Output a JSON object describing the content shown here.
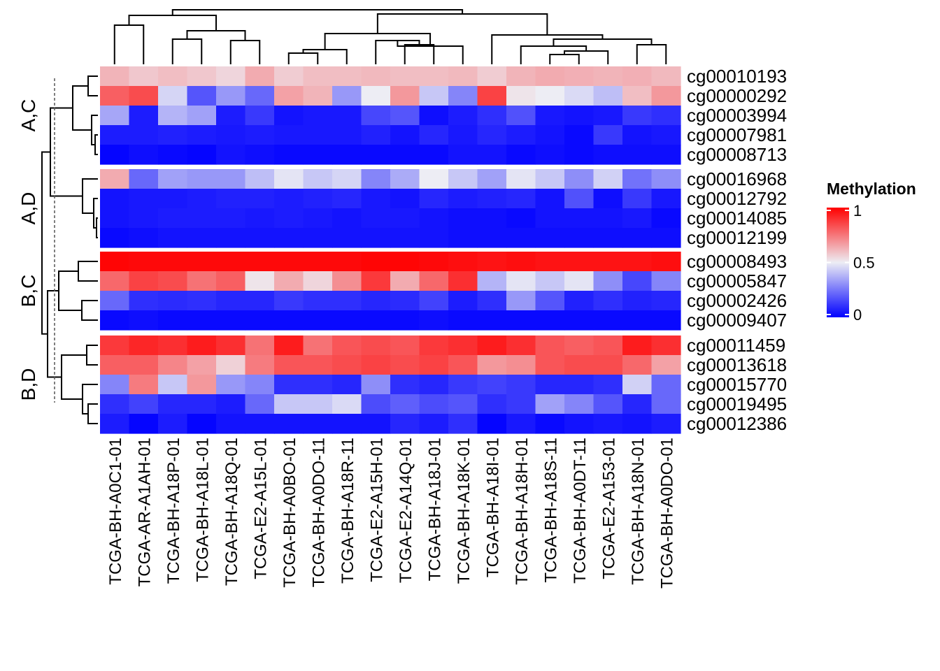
{
  "chart_data": {
    "type": "heatmap",
    "columns": [
      "TCGA-BH-A0C1-01",
      "TCGA-AR-A1AH-01",
      "TCGA-BH-A18P-01",
      "TCGA-BH-A18L-01",
      "TCGA-BH-A18Q-01",
      "TCGA-E2-A15L-01",
      "TCGA-BH-A0BO-01",
      "TCGA-BH-A0DO-11",
      "TCGA-BH-A18R-11",
      "TCGA-E2-A15H-01",
      "TCGA-E2-A14Q-01",
      "TCGA-BH-A18J-01",
      "TCGA-BH-A18K-01",
      "TCGA-BH-A18I-01",
      "TCGA-BH-A18H-01",
      "TCGA-BH-A18S-11",
      "TCGA-BH-A0DT-11",
      "TCGA-E2-A153-01",
      "TCGA-BH-A18N-01",
      "TCGA-BH-A0DO-01"
    ],
    "row_groups": [
      {
        "label": "A,C",
        "rows": [
          {
            "name": "cg00010193",
            "values": [
              0.62,
              0.58,
              0.6,
              0.58,
              0.55,
              0.64,
              0.57,
              0.6,
              0.6,
              0.61,
              0.6,
              0.6,
              0.61,
              0.57,
              0.62,
              0.64,
              0.63,
              0.62,
              0.63,
              0.61
            ]
          },
          {
            "name": "cg00000292",
            "values": [
              0.8,
              0.84,
              0.45,
              0.18,
              0.32,
              0.22,
              0.66,
              0.62,
              0.32,
              0.5,
              0.68,
              0.42,
              0.28,
              0.86,
              0.52,
              0.5,
              0.46,
              0.4,
              0.6,
              0.68
            ]
          },
          {
            "name": "cg00003994",
            "values": [
              0.35,
              0.06,
              0.38,
              0.34,
              0.06,
              0.12,
              0.04,
              0.05,
              0.05,
              0.15,
              0.18,
              0.03,
              0.06,
              0.1,
              0.17,
              0.05,
              0.04,
              0.05,
              0.12,
              0.1
            ]
          },
          {
            "name": "cg00007981",
            "values": [
              0.06,
              0.06,
              0.07,
              0.06,
              0.05,
              0.06,
              0.05,
              0.05,
              0.05,
              0.07,
              0.04,
              0.08,
              0.05,
              0.08,
              0.06,
              0.04,
              0.02,
              0.12,
              0.04,
              0.05
            ]
          },
          {
            "name": "cg00008713",
            "values": [
              0.01,
              0.03,
              0.02,
              0.01,
              0.04,
              0.03,
              0.02,
              0.02,
              0.02,
              0.02,
              0.02,
              0.02,
              0.04,
              0.04,
              0.02,
              0.03,
              0.02,
              0.03,
              0.03,
              0.03
            ]
          }
        ]
      },
      {
        "label": "A,D",
        "rows": [
          {
            "name": "cg00016968",
            "values": [
              0.64,
              0.22,
              0.34,
              0.32,
              0.32,
              0.4,
              0.48,
              0.42,
              0.45,
              0.28,
              0.36,
              0.5,
              0.42,
              0.34,
              0.48,
              0.42,
              0.3,
              0.44,
              0.24,
              0.3
            ]
          },
          {
            "name": "cg00012792",
            "values": [
              0.04,
              0.05,
              0.05,
              0.06,
              0.07,
              0.07,
              0.06,
              0.07,
              0.08,
              0.05,
              0.04,
              0.08,
              0.06,
              0.07,
              0.08,
              0.04,
              0.17,
              0.03,
              0.12,
              0.05
            ]
          },
          {
            "name": "cg00014085",
            "values": [
              0.04,
              0.05,
              0.06,
              0.06,
              0.06,
              0.05,
              0.06,
              0.05,
              0.04,
              0.05,
              0.05,
              0.04,
              0.03,
              0.03,
              0.02,
              0.04,
              0.04,
              0.04,
              0.05,
              0.02
            ]
          },
          {
            "name": "cg00012199",
            "values": [
              0.02,
              0.03,
              0.04,
              0.04,
              0.04,
              0.04,
              0.04,
              0.04,
              0.04,
              0.04,
              0.04,
              0.04,
              0.03,
              0.03,
              0.03,
              0.03,
              0.03,
              0.03,
              0.03,
              0.03
            ]
          }
        ]
      },
      {
        "label": "B,C",
        "rows": [
          {
            "name": "cg00008493",
            "values": [
              0.99,
              0.98,
              0.98,
              0.98,
              0.98,
              0.98,
              0.98,
              0.98,
              0.98,
              0.99,
              0.99,
              0.98,
              0.97,
              0.96,
              0.97,
              0.96,
              0.96,
              0.96,
              0.96,
              0.97
            ]
          },
          {
            "name": "cg00005847",
            "values": [
              0.78,
              0.86,
              0.84,
              0.76,
              0.8,
              0.52,
              0.64,
              0.55,
              0.7,
              0.88,
              0.64,
              0.78,
              0.9,
              0.38,
              0.48,
              0.42,
              0.48,
              0.3,
              0.15,
              0.28
            ]
          },
          {
            "name": "cg00002426",
            "values": [
              0.22,
              0.1,
              0.09,
              0.1,
              0.08,
              0.08,
              0.12,
              0.1,
              0.1,
              0.08,
              0.09,
              0.14,
              0.06,
              0.1,
              0.32,
              0.18,
              0.07,
              0.1,
              0.07,
              0.08
            ]
          },
          {
            "name": "cg00009407",
            "values": [
              0.02,
              0.03,
              0.02,
              0.02,
              0.02,
              0.02,
              0.02,
              0.02,
              0.02,
              0.02,
              0.02,
              0.03,
              0.02,
              0.02,
              0.02,
              0.02,
              0.02,
              0.02,
              0.02,
              0.02
            ]
          }
        ]
      },
      {
        "label": "B,D",
        "rows": [
          {
            "name": "cg00011459",
            "values": [
              0.88,
              0.92,
              0.9,
              0.94,
              0.9,
              0.76,
              0.94,
              0.76,
              0.82,
              0.84,
              0.82,
              0.88,
              0.9,
              0.94,
              0.9,
              0.82,
              0.8,
              0.82,
              0.94,
              0.9
            ]
          },
          {
            "name": "cg00013618",
            "values": [
              0.8,
              0.8,
              0.72,
              0.66,
              0.56,
              0.74,
              0.82,
              0.82,
              0.84,
              0.86,
              0.84,
              0.86,
              0.82,
              0.68,
              0.7,
              0.82,
              0.84,
              0.84,
              0.78,
              0.66
            ]
          },
          {
            "name": "cg00015770",
            "values": [
              0.28,
              0.74,
              0.42,
              0.68,
              0.32,
              0.28,
              0.1,
              0.1,
              0.08,
              0.3,
              0.1,
              0.08,
              0.12,
              0.14,
              0.12,
              0.08,
              0.08,
              0.1,
              0.44,
              0.22
            ]
          },
          {
            "name": "cg00019495",
            "values": [
              0.1,
              0.14,
              0.08,
              0.08,
              0.06,
              0.22,
              0.42,
              0.42,
              0.46,
              0.16,
              0.2,
              0.16,
              0.18,
              0.1,
              0.12,
              0.34,
              0.28,
              0.18,
              0.08,
              0.22
            ]
          },
          {
            "name": "cg00012386",
            "values": [
              0.06,
              0.01,
              0.06,
              0.01,
              0.04,
              0.04,
              0.04,
              0.04,
              0.04,
              0.04,
              0.08,
              0.06,
              0.1,
              0.01,
              0.05,
              0.02,
              0.04,
              0.05,
              0.04,
              0.06
            ]
          }
        ]
      }
    ],
    "color_scale": {
      "low": "#0000ff",
      "mid": "#ededf4",
      "high": "#ff0000",
      "domain": [
        0,
        0.5,
        1
      ]
    },
    "legend": {
      "title": "Methylation",
      "ticks": [
        "1",
        "0.5",
        "0"
      ],
      "tick_values": [
        1,
        0.5,
        0
      ],
      "position": "right"
    }
  }
}
